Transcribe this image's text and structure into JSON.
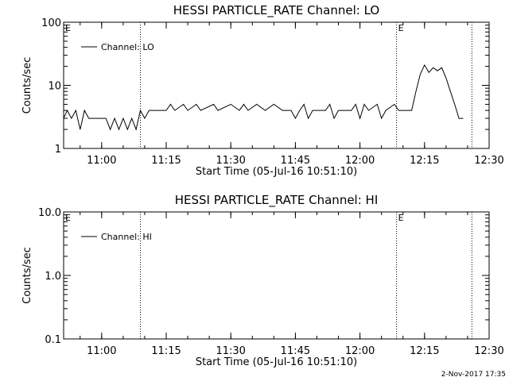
{
  "chart_data": [
    {
      "type": "line",
      "title": "HESSI PARTICLE_RATE Channel: LO",
      "xlabel": "Start Time (05-Jul-16 10:51:10)",
      "ylabel": "Counts/sec",
      "yscale": "log",
      "xlim": [
        "10:51:10",
        "12:30:00"
      ],
      "ylim": [
        1,
        100
      ],
      "xticks": [
        "11:00",
        "11:15",
        "11:30",
        "11:45",
        "12:00",
        "12:15",
        "12:30"
      ],
      "yticks": [
        "1",
        "10",
        "100"
      ],
      "legend": {
        "placement": "top-left",
        "entries": [
          "Channel: LO"
        ]
      },
      "event_lines": [
        {
          "time": "11:09:00",
          "label": ""
        },
        {
          "time": "12:08:30",
          "label": "E"
        },
        {
          "time": "12:26:00",
          "label": ""
        }
      ],
      "start_marker_label": "E",
      "series": [
        {
          "name": "Channel: LO",
          "color": "#000000",
          "points": [
            [
              "10:51:10",
              3
            ],
            [
              "10:52:00",
              4
            ],
            [
              "10:53:00",
              3
            ],
            [
              "10:54:00",
              4
            ],
            [
              "10:55:00",
              2
            ],
            [
              "10:56:00",
              4
            ],
            [
              "10:57:00",
              3
            ],
            [
              "10:59:00",
              3
            ],
            [
              "11:01:00",
              3
            ],
            [
              "11:02:00",
              2
            ],
            [
              "11:03:00",
              3
            ],
            [
              "11:04:00",
              2
            ],
            [
              "11:05:00",
              3
            ],
            [
              "11:06:00",
              2
            ],
            [
              "11:07:00",
              3
            ],
            [
              "11:08:00",
              2
            ],
            [
              "11:09:00",
              4
            ],
            [
              "11:10:00",
              3
            ],
            [
              "11:11:00",
              4
            ],
            [
              "11:15:00",
              4
            ],
            [
              "11:16:00",
              5
            ],
            [
              "11:17:00",
              4
            ],
            [
              "11:19:00",
              5
            ],
            [
              "11:20:00",
              4
            ],
            [
              "11:22:00",
              5
            ],
            [
              "11:23:00",
              4
            ],
            [
              "11:26:00",
              5
            ],
            [
              "11:27:00",
              4
            ],
            [
              "11:30:00",
              5
            ],
            [
              "11:32:00",
              4
            ],
            [
              "11:33:00",
              5
            ],
            [
              "11:34:00",
              4
            ],
            [
              "11:36:00",
              5
            ],
            [
              "11:38:00",
              4
            ],
            [
              "11:40:00",
              5
            ],
            [
              "11:42:00",
              4
            ],
            [
              "11:44:00",
              4
            ],
            [
              "11:45:00",
              3
            ],
            [
              "11:46:00",
              4
            ],
            [
              "11:47:00",
              5
            ],
            [
              "11:48:00",
              3
            ],
            [
              "11:49:00",
              4
            ],
            [
              "11:52:00",
              4
            ],
            [
              "11:53:00",
              5
            ],
            [
              "11:54:00",
              3
            ],
            [
              "11:55:00",
              4
            ],
            [
              "11:58:00",
              4
            ],
            [
              "11:59:00",
              5
            ],
            [
              "12:00:00",
              3
            ],
            [
              "12:01:00",
              5
            ],
            [
              "12:02:00",
              4
            ],
            [
              "12:04:00",
              5
            ],
            [
              "12:05:00",
              3
            ],
            [
              "12:06:00",
              4
            ],
            [
              "12:08:00",
              5
            ],
            [
              "12:09:00",
              4
            ],
            [
              "12:11:00",
              4
            ],
            [
              "12:12:00",
              4
            ],
            [
              "12:13:00",
              8
            ],
            [
              "12:14:00",
              15
            ],
            [
              "12:15:00",
              21
            ],
            [
              "12:16:00",
              16
            ],
            [
              "12:17:00",
              19
            ],
            [
              "12:18:00",
              17
            ],
            [
              "12:19:00",
              19
            ],
            [
              "12:20:00",
              13
            ],
            [
              "12:21:00",
              8
            ],
            [
              "12:22:00",
              5
            ],
            [
              "12:23:00",
              3
            ],
            [
              "12:24:00",
              3
            ]
          ]
        }
      ]
    },
    {
      "type": "line",
      "title": "HESSI PARTICLE_RATE Channel: HI",
      "xlabel": "Start Time (05-Jul-16 10:51:10)",
      "ylabel": "Counts/sec",
      "yscale": "log",
      "xlim": [
        "10:51:10",
        "12:30:00"
      ],
      "ylim": [
        0.1,
        10
      ],
      "xticks": [
        "11:00",
        "11:15",
        "11:30",
        "11:45",
        "12:00",
        "12:15",
        "12:30"
      ],
      "yticks": [
        "0.1",
        "1.0",
        "10.0"
      ],
      "legend": {
        "placement": "top-left",
        "entries": [
          "Channel: HI"
        ]
      },
      "event_lines": [
        {
          "time": "11:09:00",
          "label": ""
        },
        {
          "time": "12:08:30",
          "label": "E"
        },
        {
          "time": "12:26:00",
          "label": ""
        }
      ],
      "start_marker_label": "E",
      "series": [
        {
          "name": "Channel: HI",
          "color": "#000000",
          "points": []
        }
      ]
    }
  ],
  "footer_timestamp": "2-Nov-2017 17:35"
}
